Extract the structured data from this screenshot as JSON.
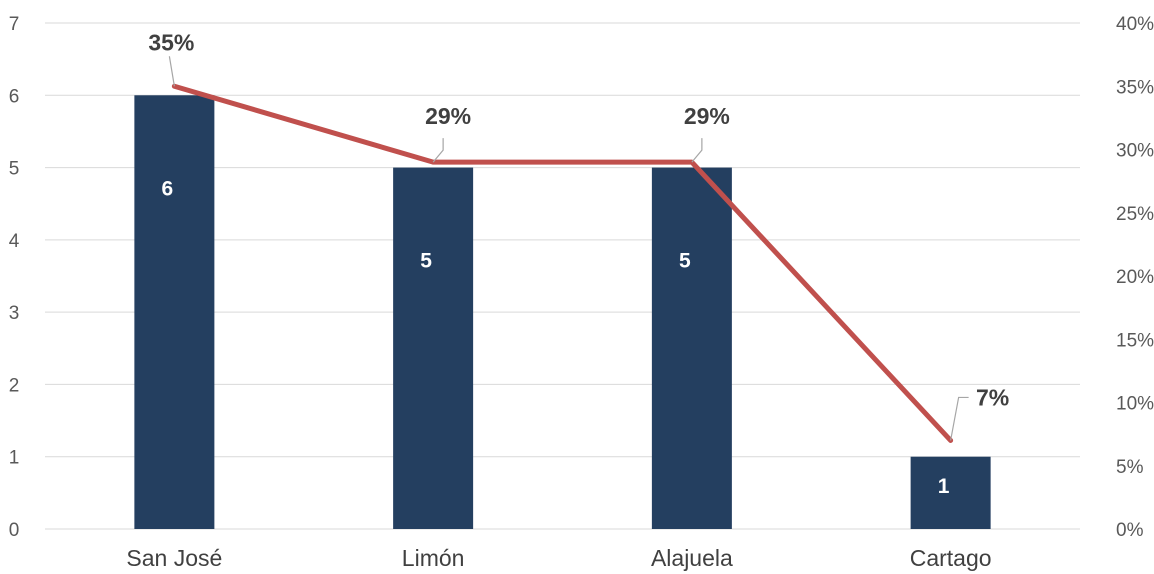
{
  "chart_data": {
    "type": "bar",
    "categories": [
      "San José",
      "Limón",
      "Alajuela",
      "Cartago"
    ],
    "series": [
      {
        "type": "bar",
        "axis": "left",
        "values": [
          6,
          5,
          5,
          1
        ],
        "labels": [
          "6",
          "5",
          "5",
          "1"
        ],
        "color": "#243f60"
      },
      {
        "type": "line",
        "axis": "right",
        "values": [
          35,
          29,
          29,
          7
        ],
        "labels": [
          "35%",
          "29%",
          "29%",
          "7%"
        ],
        "color": "#c0504d"
      }
    ],
    "y_left": {
      "ylim": [
        0,
        7
      ],
      "ticks": [
        "0",
        "1",
        "2",
        "3",
        "4",
        "5",
        "6",
        "7"
      ]
    },
    "y_right": {
      "ylim": [
        0,
        40
      ],
      "ticks": [
        "0%",
        "5%",
        "10%",
        "15%",
        "20%",
        "25%",
        "30%",
        "35%",
        "40%"
      ]
    },
    "grid": true,
    "legend": "none"
  }
}
